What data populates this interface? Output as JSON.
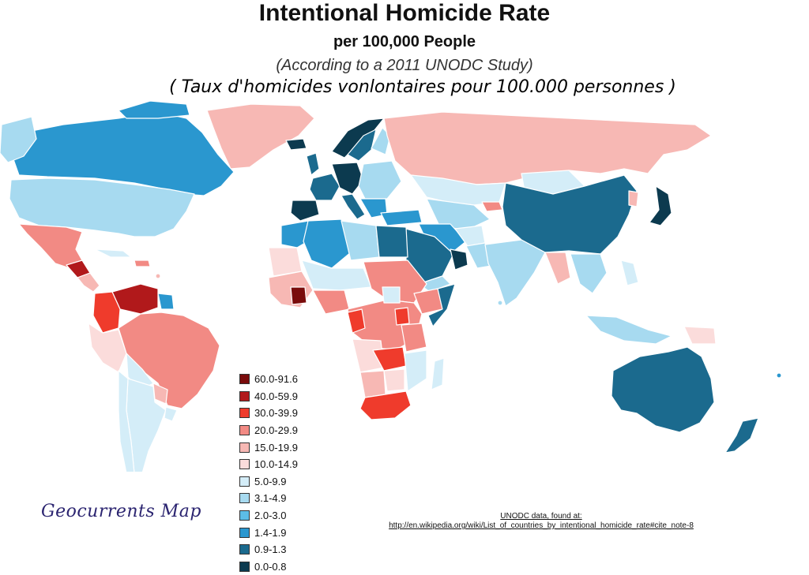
{
  "header": {
    "title": "Intentional Homicide Rate",
    "subtitle": "per 100,000 People",
    "source_note": "(According to a 2011 UNODC Study)",
    "french_caption": "( Taux d'homicides vonlontaires pour 100.000 personnes )"
  },
  "legend": {
    "items": [
      {
        "label": "60.0-91.6",
        "color": "#7a0c0c"
      },
      {
        "label": "40.0-59.9",
        "color": "#b1191b"
      },
      {
        "label": "30.0-39.9",
        "color": "#ef3b2c"
      },
      {
        "label": "20.0-29.9",
        "color": "#f28a84"
      },
      {
        "label": "15.0-19.9",
        "color": "#f7b8b4"
      },
      {
        "label": "10.0-14.9",
        "color": "#fbdcdb"
      },
      {
        "label": "5.0-9.9",
        "color": "#d4edf8"
      },
      {
        "label": "3.1-4.9",
        "color": "#a7daf0"
      },
      {
        "label": "2.0-3.0",
        "color": "#5cbde7"
      },
      {
        "label": "1.4-1.9",
        "color": "#2a97cf"
      },
      {
        "label": "0.9-1.3",
        "color": "#1b6a8e"
      },
      {
        "label": "0.0-0.8",
        "color": "#0c3a4f"
      }
    ]
  },
  "branding": {
    "text": "Geocurrents Map"
  },
  "credit": {
    "line1": "UNODC data, found at:",
    "url": "http://en.wikipedia.org/wiki/List_of_countries_by_intentional_homicide_rate#cite_note-8"
  },
  "map_colors": {
    "background": "#ffffff",
    "border": "#ffffff"
  }
}
